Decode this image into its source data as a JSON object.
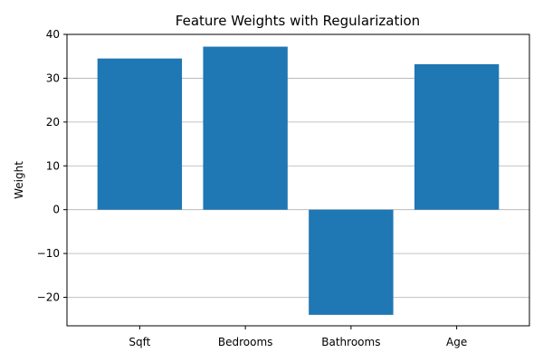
{
  "chart_data": {
    "type": "bar",
    "title": "Feature Weights with Regularization",
    "xlabel": "",
    "ylabel": "Weight",
    "categories": [
      "Sqft",
      "Bedrooms",
      "Bathrooms",
      "Age"
    ],
    "values": [
      34.5,
      37.2,
      -24.0,
      33.2
    ],
    "ylim": [
      -26.5,
      40
    ],
    "yticks": [
      -20,
      -10,
      0,
      10,
      20,
      30,
      40
    ],
    "ytick_labels": [
      "−20",
      "−10",
      "0",
      "10",
      "20",
      "30",
      "40"
    ],
    "grid": "y",
    "bar_color": "#1f77b4"
  }
}
